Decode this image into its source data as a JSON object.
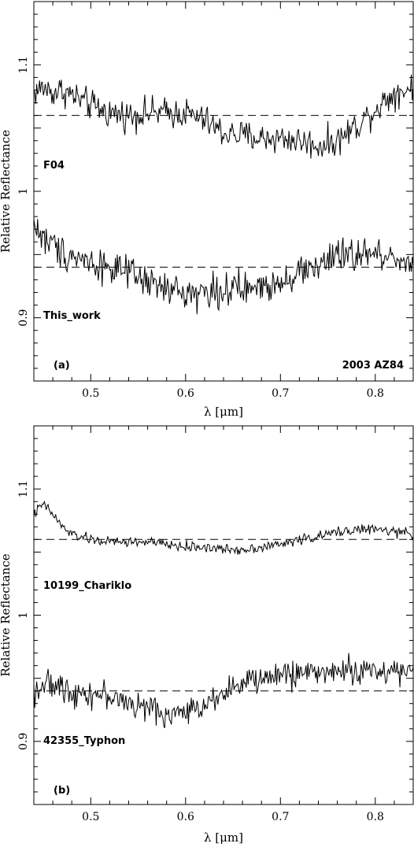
{
  "chart_data": [
    {
      "type": "line",
      "panel_label": "(a)",
      "object_label": "2003 AZ84",
      "xlabel": "λ [μm]",
      "ylabel": "Relative Reflectance",
      "xlim": [
        0.44,
        0.84
      ],
      "ylim": [
        0.85,
        1.15
      ],
      "x_ticks": [
        0.5,
        0.6,
        0.7,
        0.8
      ],
      "x_tick_labels": [
        "0.5",
        "0.6",
        "0.7",
        "0.8"
      ],
      "y_ticks": [
        0.9,
        1.0,
        1.1
      ],
      "y_tick_labels": [
        "0.9",
        "1",
        "1.1"
      ],
      "reference_lines": [
        1.06,
        0.94
      ],
      "series": [
        {
          "name": "F04",
          "baseline": 1.06,
          "x": [
            0.44,
            0.45,
            0.46,
            0.47,
            0.48,
            0.5,
            0.52,
            0.54,
            0.56,
            0.58,
            0.6,
            0.62,
            0.64,
            0.66,
            0.68,
            0.7,
            0.72,
            0.74,
            0.76,
            0.78,
            0.8,
            0.82,
            0.84
          ],
          "y": [
            1.078,
            1.082,
            1.078,
            1.08,
            1.076,
            1.068,
            1.062,
            1.06,
            1.062,
            1.062,
            1.062,
            1.056,
            1.046,
            1.044,
            1.042,
            1.042,
            1.04,
            1.036,
            1.04,
            1.052,
            1.065,
            1.078,
            1.082
          ],
          "noise": 0.018
        },
        {
          "name": "This_work",
          "baseline": 0.94,
          "x": [
            0.44,
            0.45,
            0.46,
            0.47,
            0.48,
            0.5,
            0.52,
            0.54,
            0.56,
            0.58,
            0.6,
            0.62,
            0.64,
            0.66,
            0.68,
            0.7,
            0.72,
            0.74,
            0.76,
            0.78,
            0.8,
            0.82,
            0.84
          ],
          "y": [
            0.975,
            0.962,
            0.958,
            0.952,
            0.95,
            0.944,
            0.94,
            0.934,
            0.928,
            0.922,
            0.92,
            0.92,
            0.922,
            0.922,
            0.924,
            0.93,
            0.936,
            0.942,
            0.948,
            0.95,
            0.95,
            0.948,
            0.944
          ],
          "noise": 0.02
        }
      ]
    },
    {
      "type": "line",
      "panel_label": "(b)",
      "xlabel": "λ [μm]",
      "ylabel": "Relative Reflectance",
      "xlim": [
        0.44,
        0.84
      ],
      "ylim": [
        0.85,
        1.15
      ],
      "x_ticks": [
        0.5,
        0.6,
        0.7,
        0.8
      ],
      "x_tick_labels": [
        "0.5",
        "0.6",
        "0.7",
        "0.8"
      ],
      "y_ticks": [
        0.9,
        1.0,
        1.1
      ],
      "y_tick_labels": [
        "0.9",
        "1",
        "1.1"
      ],
      "reference_lines": [
        1.06,
        0.94
      ],
      "series": [
        {
          "name": "10199_Chariklo",
          "baseline": 1.06,
          "x": [
            0.44,
            0.45,
            0.46,
            0.47,
            0.48,
            0.5,
            0.52,
            0.54,
            0.56,
            0.58,
            0.6,
            0.62,
            0.64,
            0.66,
            0.68,
            0.7,
            0.72,
            0.74,
            0.76,
            0.78,
            0.8,
            0.82,
            0.84
          ],
          "y": [
            1.08,
            1.088,
            1.08,
            1.07,
            1.064,
            1.06,
            1.058,
            1.058,
            1.058,
            1.056,
            1.054,
            1.054,
            1.052,
            1.052,
            1.054,
            1.056,
            1.06,
            1.062,
            1.066,
            1.068,
            1.068,
            1.066,
            1.064
          ],
          "noise": 0.006
        },
        {
          "name": "42355_Typhon",
          "baseline": 0.94,
          "x": [
            0.44,
            0.45,
            0.46,
            0.47,
            0.48,
            0.5,
            0.52,
            0.54,
            0.56,
            0.58,
            0.6,
            0.62,
            0.64,
            0.66,
            0.68,
            0.7,
            0.72,
            0.74,
            0.76,
            0.78,
            0.8,
            0.82,
            0.84
          ],
          "y": [
            0.94,
            0.945,
            0.944,
            0.942,
            0.94,
            0.938,
            0.936,
            0.93,
            0.926,
            0.922,
            0.922,
            0.93,
            0.94,
            0.945,
            0.95,
            0.952,
            0.955,
            0.955,
            0.956,
            0.956,
            0.956,
            0.956,
            0.955
          ],
          "noise": 0.016
        }
      ]
    }
  ]
}
